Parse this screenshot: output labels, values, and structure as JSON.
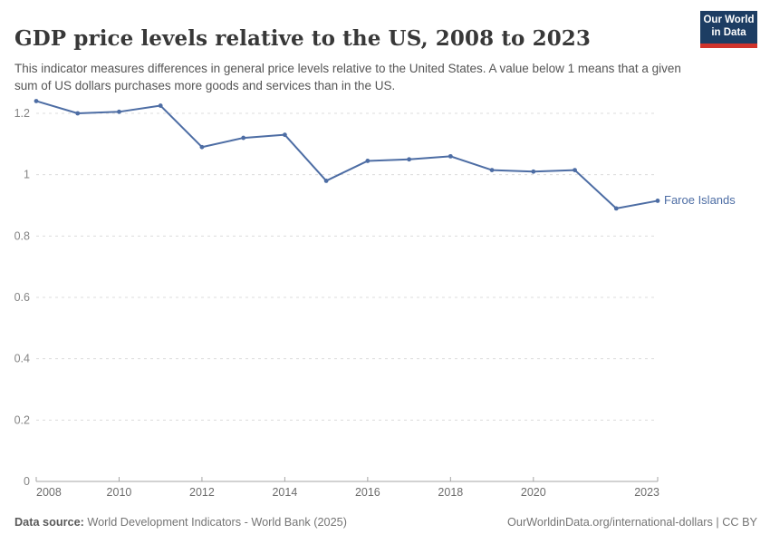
{
  "header": {
    "title": "GDP price levels relative to the US, 2008 to 2023",
    "subtitle": "This indicator measures differences in general price levels relative to the United States. A value below 1 means that a given sum of US dollars purchases more goods and services than in the US.",
    "logo": {
      "line1": "Our World",
      "line2": "in Data",
      "bg_color": "#1d3d63",
      "stripe_color": "#d0342c"
    }
  },
  "chart_data": {
    "type": "line",
    "title": "GDP price levels relative to the US, 2008 to 2023",
    "x": [
      2008,
      2009,
      2010,
      2011,
      2012,
      2013,
      2014,
      2015,
      2016,
      2017,
      2018,
      2019,
      2020,
      2021,
      2022,
      2023
    ],
    "series": [
      {
        "name": "Faroe Islands",
        "color": "#4d6da4",
        "values": [
          1.24,
          1.2,
          1.205,
          1.225,
          1.09,
          1.12,
          1.13,
          0.98,
          1.045,
          1.05,
          1.06,
          1.015,
          1.01,
          1.015,
          0.89,
          0.915
        ]
      }
    ],
    "xlabel": "",
    "ylabel": "",
    "xlim": [
      2008,
      2023
    ],
    "ylim": [
      0,
      1.25
    ],
    "xticks": [
      2008,
      2010,
      2012,
      2014,
      2016,
      2018,
      2020,
      2023
    ],
    "xtick_labels": [
      "2008",
      "2010",
      "2012",
      "2014",
      "2016",
      "2018",
      "2020",
      "2023"
    ],
    "yticks": [
      0,
      0.2,
      0.4,
      0.6,
      0.8,
      1,
      1.2
    ],
    "ytick_labels": [
      "0",
      "0.2",
      "0.4",
      "0.6",
      "0.8",
      "1",
      "1.2"
    ],
    "grid": "dashed-horizontal",
    "legend_position": "end-of-line-label",
    "colors": {
      "grid": "#dcdcdc",
      "axis": "#a5a5a5",
      "ytick_text": "#858585",
      "xtick_text": "#6d6d6d"
    }
  },
  "footer": {
    "source_label": "Data source:",
    "source_text": " World Development Indicators - World Bank (2025)",
    "credit_text": "OurWorldinData.org/international-dollars | CC BY"
  }
}
